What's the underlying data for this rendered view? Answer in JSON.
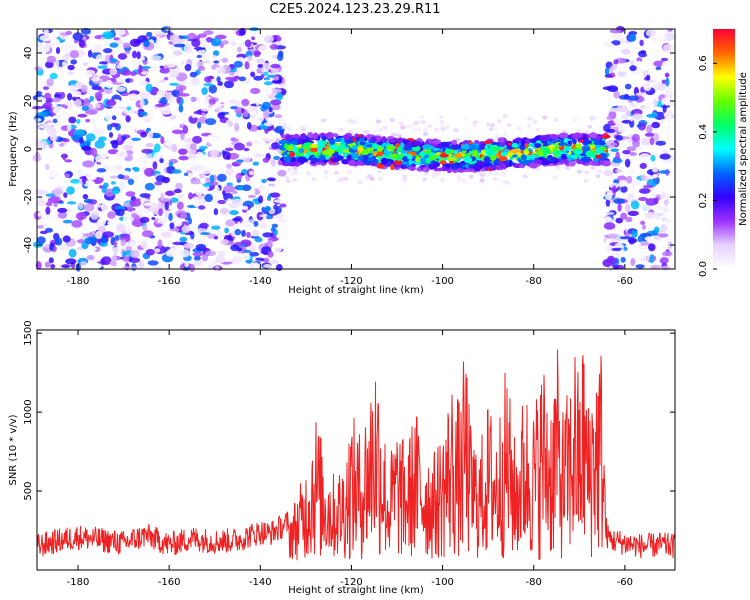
{
  "title": "C2E5.2024.123.23.29.R11",
  "colors": {
    "snr_line": "#ee2222",
    "axis": "#000000",
    "background": "#ffffff"
  },
  "chart_data": [
    {
      "type": "heatmap",
      "title": "C2E5.2024.123.23.29.R11",
      "xlabel": "Height of straight line (km)",
      "ylabel": "Frequency (Hz)",
      "xlim": [
        -189,
        -49
      ],
      "ylim": [
        -50,
        50
      ],
      "x_ticks": [
        "-180",
        "-160",
        "-140",
        "-120",
        "-100",
        "-80",
        "-60"
      ],
      "y_ticks": [
        "-40",
        "-20",
        "0",
        "20",
        "40"
      ],
      "colorbar": {
        "label": "Normalized spectral amplitude",
        "ticks": [
          "0.0",
          "0.2",
          "0.4",
          "0.6"
        ],
        "range": [
          0,
          0.7
        ],
        "palette": [
          "#ffffff",
          "#e6d2ff",
          "#9b30ff",
          "#3300ff",
          "#0066ff",
          "#00ffff",
          "#00ff66",
          "#66ff00",
          "#ffff00",
          "#ff6600",
          "#ff0033"
        ]
      },
      "regions": [
        {
          "x_range": [
            -189,
            -135
          ],
          "content": "broadband noise",
          "freq_range": [
            -50,
            50
          ]
        },
        {
          "x_range": [
            -135,
            -64
          ],
          "content": "narrow band signal",
          "freq_range": [
            -6,
            6
          ],
          "peak_amplitude": 0.7
        },
        {
          "x_range": [
            -64,
            -50
          ],
          "content": "broadband noise",
          "freq_range": [
            -50,
            50
          ]
        }
      ]
    },
    {
      "type": "line",
      "xlabel": "Height of straight line (km)",
      "ylabel": "SNR (10 * v/v)",
      "xlim": [
        -189,
        -49
      ],
      "ylim": [
        0,
        1520
      ],
      "x_ticks": [
        "-180",
        "-160",
        "-140",
        "-120",
        "-100",
        "-80",
        "-60"
      ],
      "y_ticks": [
        "500",
        "1000",
        "1500"
      ],
      "series": [
        {
          "x": [
            -189,
            -185,
            -180,
            -175,
            -170,
            -165,
            -160,
            -155,
            -150,
            -145,
            -140,
            -138,
            -136,
            -134,
            -132,
            -130,
            -128,
            -126,
            -124,
            -122,
            -120,
            -118,
            -116,
            -115,
            -114,
            -112,
            -110,
            -108,
            -106,
            -104,
            -102,
            -100,
            -98,
            -96,
            -95,
            -94,
            -92,
            -90,
            -88,
            -86,
            -84,
            -82,
            -80,
            -78,
            -76,
            -75,
            -74,
            -72,
            -71,
            -70,
            -69,
            -68,
            -67,
            -66,
            -65,
            -64,
            -63,
            -60,
            -56,
            -52,
            -49
          ],
          "y": [
            150,
            180,
            210,
            190,
            170,
            220,
            160,
            200,
            180,
            190,
            240,
            230,
            260,
            300,
            420,
            600,
            980,
            700,
            560,
            620,
            940,
            820,
            1100,
            1400,
            1240,
            620,
            880,
            720,
            980,
            780,
            680,
            860,
            1160,
            1000,
            1460,
            900,
            720,
            1020,
            880,
            1260,
            740,
            1120,
            980,
            1300,
            1060,
            1440,
            960,
            1130,
            1420,
            1160,
            1480,
            1020,
            1280,
            1340,
            1420,
            220,
            190,
            170,
            150,
            160,
            150
          ],
          "noise_amplitude": 80
        }
      ]
    }
  ]
}
